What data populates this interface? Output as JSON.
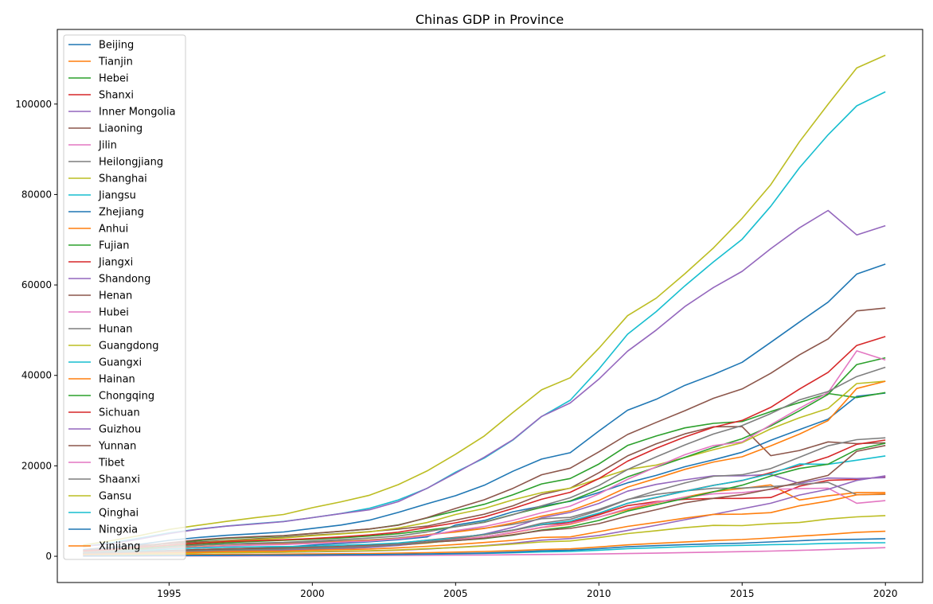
{
  "chart_data": {
    "type": "line",
    "title": "Chinas GDP in Province",
    "xlabel": "",
    "ylabel": "",
    "xlim": [
      1991.1,
      2021.3
    ],
    "ylim": [
      -5800,
      116500
    ],
    "xticks": [
      "1995",
      "2000",
      "2005",
      "2010",
      "2015",
      "2020"
    ],
    "yticks": [
      "0",
      "20000",
      "40000",
      "60000",
      "80000",
      "100000"
    ],
    "grid": false,
    "legend_position": "upper-left",
    "x": [
      1992,
      1993,
      1994,
      1995,
      1996,
      1997,
      1998,
      1999,
      2000,
      2001,
      2002,
      2003,
      2004,
      2005,
      2006,
      2007,
      2008,
      2009,
      2010,
      2011,
      2012,
      2013,
      2014,
      2015,
      2016,
      2017,
      2018,
      2019,
      2020
    ],
    "series": [
      {
        "name": "Beijing",
        "color": "#1f77b4",
        "values": [
          700,
          880,
          1080,
          1280,
          1480,
          1650,
          1810,
          2000,
          2480,
          2850,
          3210,
          3660,
          4280,
          6900,
          7900,
          9850,
          11100,
          12150,
          14100,
          16250,
          17880,
          19800,
          21330,
          23010,
          25670,
          28010,
          30320,
          35370,
          36100
        ]
      },
      {
        "name": "Tianjin",
        "color": "#ff7f0e",
        "values": [
          410,
          540,
          720,
          920,
          1100,
          1240,
          1340,
          1450,
          1640,
          1840,
          2050,
          2450,
          2930,
          3700,
          4300,
          5200,
          6350,
          7100,
          8700,
          10300,
          11800,
          13100,
          14300,
          15000,
          15800,
          12450,
          13360,
          14100,
          14100
        ]
      },
      {
        "name": "Hebei",
        "color": "#2ca02c",
        "values": [
          1280,
          1690,
          2190,
          2850,
          3450,
          3950,
          4250,
          4510,
          5040,
          5510,
          6020,
          6920,
          8480,
          10000,
          11500,
          13600,
          16000,
          17200,
          20400,
          24500,
          26600,
          28400,
          29400,
          29800,
          32000,
          34000,
          36000,
          35100,
          36200
        ]
      },
      {
        "name": "Shanxi",
        "color": "#d62728",
        "values": [
          570,
          680,
          830,
          1080,
          1310,
          1480,
          1610,
          1670,
          1850,
          2030,
          2320,
          2860,
          3570,
          4180,
          4750,
          5730,
          7000,
          7360,
          9200,
          11200,
          12100,
          12600,
          12800,
          12800,
          13000,
          15500,
          16800,
          17000,
          17600
        ]
      },
      {
        "name": "Inner Mongolia",
        "color": "#9467bd",
        "values": [
          420,
          530,
          680,
          830,
          990,
          1150,
          1260,
          1380,
          1540,
          1710,
          1940,
          2390,
          3040,
          3900,
          4900,
          6400,
          8500,
          9700,
          11700,
          14400,
          15900,
          16900,
          17800,
          17800,
          18100,
          16100,
          17300,
          17200,
          17400
        ]
      },
      {
        "name": "Liaoning",
        "color": "#8c564b",
        "values": [
          1470,
          2010,
          2460,
          2790,
          3160,
          3490,
          3880,
          4170,
          4670,
          5030,
          5460,
          6000,
          6670,
          8000,
          9300,
          11160,
          13670,
          15070,
          18460,
          22200,
          24850,
          27080,
          28630,
          28670,
          22250,
          23400,
          25300,
          24900,
          25100
        ]
      },
      {
        "name": "Jilin",
        "color": "#e377c2",
        "values": [
          560,
          720,
          940,
          1130,
          1340,
          1450,
          1560,
          1670,
          1820,
          2030,
          2250,
          2660,
          3120,
          3620,
          4280,
          5280,
          6420,
          7280,
          8670,
          10570,
          11940,
          13050,
          13800,
          14060,
          14780,
          14950,
          15070,
          11730,
          12300
        ]
      },
      {
        "name": "Heilongjiang",
        "color": "#7f7f7f",
        "values": [
          960,
          1200,
          1600,
          2010,
          2400,
          2710,
          2770,
          2870,
          3150,
          3390,
          3640,
          4060,
          4750,
          5510,
          6210,
          7070,
          8310,
          8590,
          10370,
          12580,
          13690,
          14450,
          15040,
          15080,
          15390,
          15900,
          16360,
          13610,
          13700
        ]
      },
      {
        "name": "Shanghai",
        "color": "#bcbd22",
        "values": [
          1110,
          1510,
          1970,
          2460,
          2900,
          3360,
          3690,
          4030,
          4550,
          4950,
          5410,
          6250,
          7450,
          9250,
          10570,
          12490,
          14070,
          15050,
          17170,
          19200,
          20180,
          21820,
          23570,
          25120,
          28180,
          30630,
          32680,
          38200,
          38700
        ]
      },
      {
        "name": "Jiangsu",
        "color": "#17becf",
        "values": [
          2140,
          2990,
          4060,
          5160,
          6000,
          6680,
          7200,
          7700,
          8550,
          9460,
          10610,
          12440,
          15000,
          18600,
          21700,
          25700,
          30900,
          34500,
          41400,
          49100,
          54100,
          59800,
          65100,
          70100,
          77400,
          85900,
          93200,
          99600,
          102700
        ]
      },
      {
        "name": "Zhejiang",
        "color": "#1f77b4",
        "values": [
          1380,
          1910,
          2670,
          3520,
          4150,
          4640,
          4990,
          5370,
          6140,
          6900,
          8000,
          9700,
          11600,
          13400,
          15700,
          18800,
          21500,
          22900,
          27700,
          32300,
          34700,
          37800,
          40200,
          42900,
          47300,
          51800,
          56200,
          62400,
          64600
        ]
      },
      {
        "name": "Anhui",
        "color": "#ff7f0e",
        "values": [
          800,
          1040,
          1320,
          1800,
          2090,
          2350,
          2540,
          2710,
          2900,
          3250,
          3520,
          3920,
          4760,
          5350,
          6150,
          7360,
          8850,
          10060,
          12360,
          15300,
          17210,
          19230,
          20850,
          22010,
          24410,
          27020,
          30010,
          37110,
          38700
        ]
      },
      {
        "name": "Fujian",
        "color": "#2ca02c",
        "values": [
          820,
          1130,
          1690,
          2160,
          2610,
          3010,
          3290,
          3550,
          3760,
          4070,
          4470,
          4980,
          5760,
          6550,
          7580,
          9250,
          10820,
          12240,
          14740,
          17560,
          19700,
          21870,
          24060,
          25980,
          28810,
          32180,
          35800,
          42400,
          43900
        ]
      },
      {
        "name": "Jiangxi",
        "color": "#d62728",
        "values": [
          570,
          720,
          950,
          1170,
          1410,
          1610,
          1720,
          1850,
          2000,
          2180,
          2450,
          2830,
          3460,
          4060,
          4820,
          5800,
          6970,
          7660,
          9450,
          11700,
          12950,
          14410,
          15710,
          16720,
          18500,
          20010,
          21980,
          24760,
          25700
        ]
      },
      {
        "name": "Shandong",
        "color": "#9467bd",
        "values": [
          2200,
          2770,
          3840,
          5000,
          5960,
          6650,
          7160,
          7660,
          8540,
          9440,
          10280,
          12080,
          15020,
          18370,
          21900,
          25780,
          30930,
          33900,
          39170,
          45360,
          50010,
          55230,
          59430,
          63000,
          68020,
          72630,
          76470,
          71070,
          73100
        ]
      },
      {
        "name": "Henan",
        "color": "#8c564b",
        "values": [
          1280,
          1660,
          2220,
          2990,
          3630,
          4080,
          4360,
          4580,
          5050,
          5530,
          6040,
          6870,
          8550,
          10590,
          12500,
          15010,
          18020,
          19480,
          23090,
          26930,
          29600,
          32190,
          34940,
          37000,
          40470,
          44550,
          48060,
          54260,
          54900
        ]
      },
      {
        "name": "Hubei",
        "color": "#e377c2",
        "values": [
          830,
          1010,
          1310,
          1660,
          2000,
          2290,
          2480,
          2600,
          2860,
          3120,
          3360,
          3850,
          4550,
          5680,
          6590,
          7930,
          9610,
          11090,
          13810,
          17000,
          19780,
          22460,
          24480,
          25290,
          29070,
          32710,
          36210,
          45430,
          43400
        ]
      },
      {
        "name": "Hunan",
        "color": "#7f7f7f",
        "values": [
          870,
          1100,
          1420,
          1980,
          2460,
          2690,
          2920,
          3070,
          3370,
          3680,
          4030,
          4470,
          5400,
          6530,
          7490,
          9200,
          11160,
          12940,
          15630,
          19180,
          21990,
          24620,
          27040,
          28900,
          31550,
          34590,
          36430,
          39750,
          41800
        ]
      },
      {
        "name": "Guangdong",
        "color": "#bcbd22",
        "values": [
          2450,
          3470,
          4620,
          5930,
          6830,
          7720,
          8530,
          9250,
          10740,
          12040,
          13500,
          15840,
          18860,
          22560,
          26590,
          31780,
          36800,
          39480,
          46010,
          53210,
          57070,
          62470,
          68170,
          74730,
          82160,
          91650,
          99950,
          107990,
          110800
        ]
      },
      {
        "name": "Guangxi",
        "color": "#17becf",
        "values": [
          650,
          870,
          1200,
          1610,
          1870,
          2010,
          2120,
          2150,
          2230,
          2450,
          2650,
          2950,
          3540,
          4080,
          4830,
          5820,
          7030,
          7760,
          9570,
          11720,
          13030,
          14380,
          15670,
          16800,
          18250,
          20400,
          20350,
          21240,
          22200
        ]
      },
      {
        "name": "Hainan",
        "color": "#ff7f0e",
        "values": [
          180,
          260,
          330,
          370,
          390,
          410,
          440,
          480,
          530,
          570,
          620,
          690,
          800,
          920,
          1070,
          1250,
          1500,
          1650,
          2060,
          2520,
          2860,
          3150,
          3500,
          3700,
          4050,
          4460,
          4830,
          5310,
          5530
        ]
      },
      {
        "name": "Chongqing",
        "color": "#2ca02c",
        "values": [
          520,
          650,
          850,
          1080,
          1320,
          1510,
          1600,
          1660,
          1790,
          1980,
          2230,
          2560,
          3030,
          3470,
          3910,
          4680,
          5790,
          6530,
          7930,
          10010,
          11410,
          12780,
          14260,
          15720,
          17740,
          19420,
          20360,
          23610,
          25000
        ]
      },
      {
        "name": "Sichuan",
        "color": "#d62728",
        "values": [
          1180,
          1490,
          2000,
          2440,
          2870,
          3240,
          3470,
          3650,
          3930,
          4290,
          4730,
          5330,
          6380,
          7390,
          8690,
          10560,
          12600,
          14150,
          17190,
          21030,
          23870,
          26390,
          28540,
          30050,
          32930,
          36980,
          40680,
          46620,
          48600
        ]
      },
      {
        "name": "Guizhou",
        "color": "#9467bd",
        "values": [
          340,
          410,
          520,
          630,
          720,
          790,
          840,
          900,
          990,
          1080,
          1190,
          1350,
          1600,
          1980,
          2340,
          2880,
          3560,
          3910,
          4600,
          5700,
          6850,
          8090,
          9270,
          10500,
          11730,
          13540,
          14810,
          16770,
          17800
        ]
      },
      {
        "name": "Yunnan",
        "color": "#8c564b",
        "values": [
          610,
          780,
          980,
          1220,
          1490,
          1640,
          1790,
          1860,
          2010,
          2140,
          2310,
          2560,
          3080,
          3460,
          4000,
          4770,
          5690,
          6170,
          7220,
          8890,
          10310,
          11830,
          12810,
          13620,
          14870,
          16380,
          17880,
          23220,
          24500
        ]
      },
      {
        "name": "Tibet",
        "color": "#e377c2",
        "values": [
          30,
          40,
          50,
          60,
          70,
          80,
          90,
          110,
          120,
          140,
          160,
          190,
          220,
          250,
          290,
          340,
          390,
          440,
          510,
          610,
          700,
          820,
          920,
          1030,
          1150,
          1310,
          1480,
          1700,
          1900
        ]
      },
      {
        "name": "Shaanxi",
        "color": "#7f7f7f",
        "values": [
          530,
          680,
          840,
          1040,
          1220,
          1360,
          1460,
          1590,
          1800,
          2010,
          2250,
          2590,
          3180,
          3930,
          4740,
          5760,
          7310,
          8170,
          10120,
          12510,
          14450,
          16210,
          17690,
          18020,
          19400,
          21900,
          24440,
          25790,
          26200
        ]
      },
      {
        "name": "Gansu",
        "color": "#bcbd22",
        "values": [
          320,
          380,
          460,
          560,
          720,
          790,
          860,
          930,
          1050,
          1130,
          1230,
          1400,
          1690,
          1930,
          2280,
          2700,
          3170,
          3390,
          4120,
          5020,
          5650,
          6330,
          6840,
          6790,
          7200,
          7460,
          8250,
          8720,
          9000
        ]
      },
      {
        "name": "Qinghai",
        "color": "#17becf",
        "values": [
          90,
          110,
          140,
          170,
          190,
          210,
          230,
          240,
          260,
          300,
          340,
          390,
          470,
          540,
          640,
          780,
          960,
          1080,
          1350,
          1670,
          1890,
          2120,
          2300,
          2420,
          2570,
          2640,
          2860,
          2970,
          3000
        ]
      },
      {
        "name": "Ningxia",
        "color": "#1f77b4",
        "values": [
          80,
          100,
          130,
          170,
          190,
          210,
          230,
          250,
          300,
          340,
          380,
          450,
          540,
          610,
          730,
          920,
          1200,
          1350,
          1690,
          2100,
          2340,
          2580,
          2750,
          2910,
          3170,
          3440,
          3700,
          3750,
          3900
        ]
      },
      {
        "name": "Xinjiang",
        "color": "#ff7f0e",
        "values": [
          400,
          500,
          670,
          820,
          910,
          1040,
          1120,
          1160,
          1360,
          1490,
          1610,
          1880,
          2210,
          2600,
          3050,
          3520,
          4180,
          4280,
          5440,
          6610,
          7510,
          8440,
          9270,
          9320,
          9650,
          11160,
          12200,
          13600,
          13800
        ]
      }
    ]
  }
}
